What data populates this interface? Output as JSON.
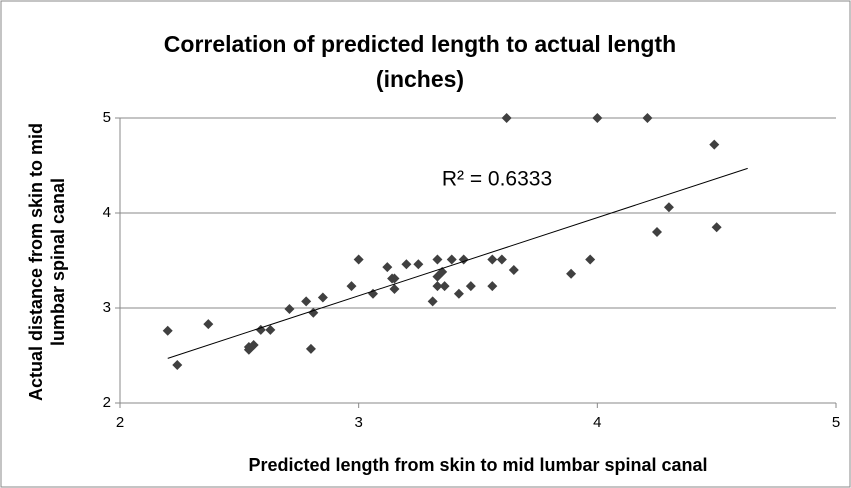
{
  "chart_data": {
    "type": "scatter",
    "title": [
      "Correlation of predicted length to actual length",
      "(inches)"
    ],
    "xlabel": "Predicted length from skin to mid lumbar spinal canal",
    "ylabel": [
      "Actual distance from skin to mid",
      "lumbar spinal canal"
    ],
    "annotation": "R² = 0.6333",
    "xlim": [
      2,
      5
    ],
    "xticks": [
      2,
      3,
      4,
      5
    ],
    "ylim": [
      2,
      5
    ],
    "yticks": [
      2,
      3,
      4,
      5
    ],
    "grid": true,
    "color": "#404040",
    "trendline_color": "#000000",
    "trendline": {
      "x": [
        2.2,
        4.63
      ],
      "y": [
        2.47,
        4.47
      ]
    },
    "x": [
      2.2,
      2.24,
      2.37,
      2.54,
      2.54,
      2.56,
      2.59,
      2.63,
      2.71,
      2.78,
      2.8,
      2.81,
      2.85,
      2.97,
      3.0,
      3.06,
      3.12,
      3.14,
      3.15,
      3.15,
      3.2,
      3.25,
      3.31,
      3.33,
      3.33,
      3.33,
      3.35,
      3.36,
      3.39,
      3.42,
      3.44,
      3.47,
      3.56,
      3.56,
      3.6,
      3.62,
      3.65,
      3.89,
      3.97,
      4.0,
      4.21,
      4.25,
      4.3,
      4.49,
      4.5
    ],
    "values": [
      2.76,
      2.4,
      2.83,
      2.59,
      2.56,
      2.61,
      2.77,
      2.77,
      2.99,
      3.07,
      2.57,
      2.95,
      3.11,
      3.23,
      3.51,
      3.15,
      3.43,
      3.31,
      3.2,
      3.31,
      3.46,
      3.46,
      3.07,
      3.51,
      3.33,
      3.23,
      3.38,
      3.23,
      3.51,
      3.15,
      3.51,
      3.23,
      3.51,
      3.23,
      3.51,
      5.0,
      3.4,
      3.36,
      3.51,
      5.0,
      5.0,
      3.8,
      4.06,
      4.72,
      3.85
    ]
  }
}
